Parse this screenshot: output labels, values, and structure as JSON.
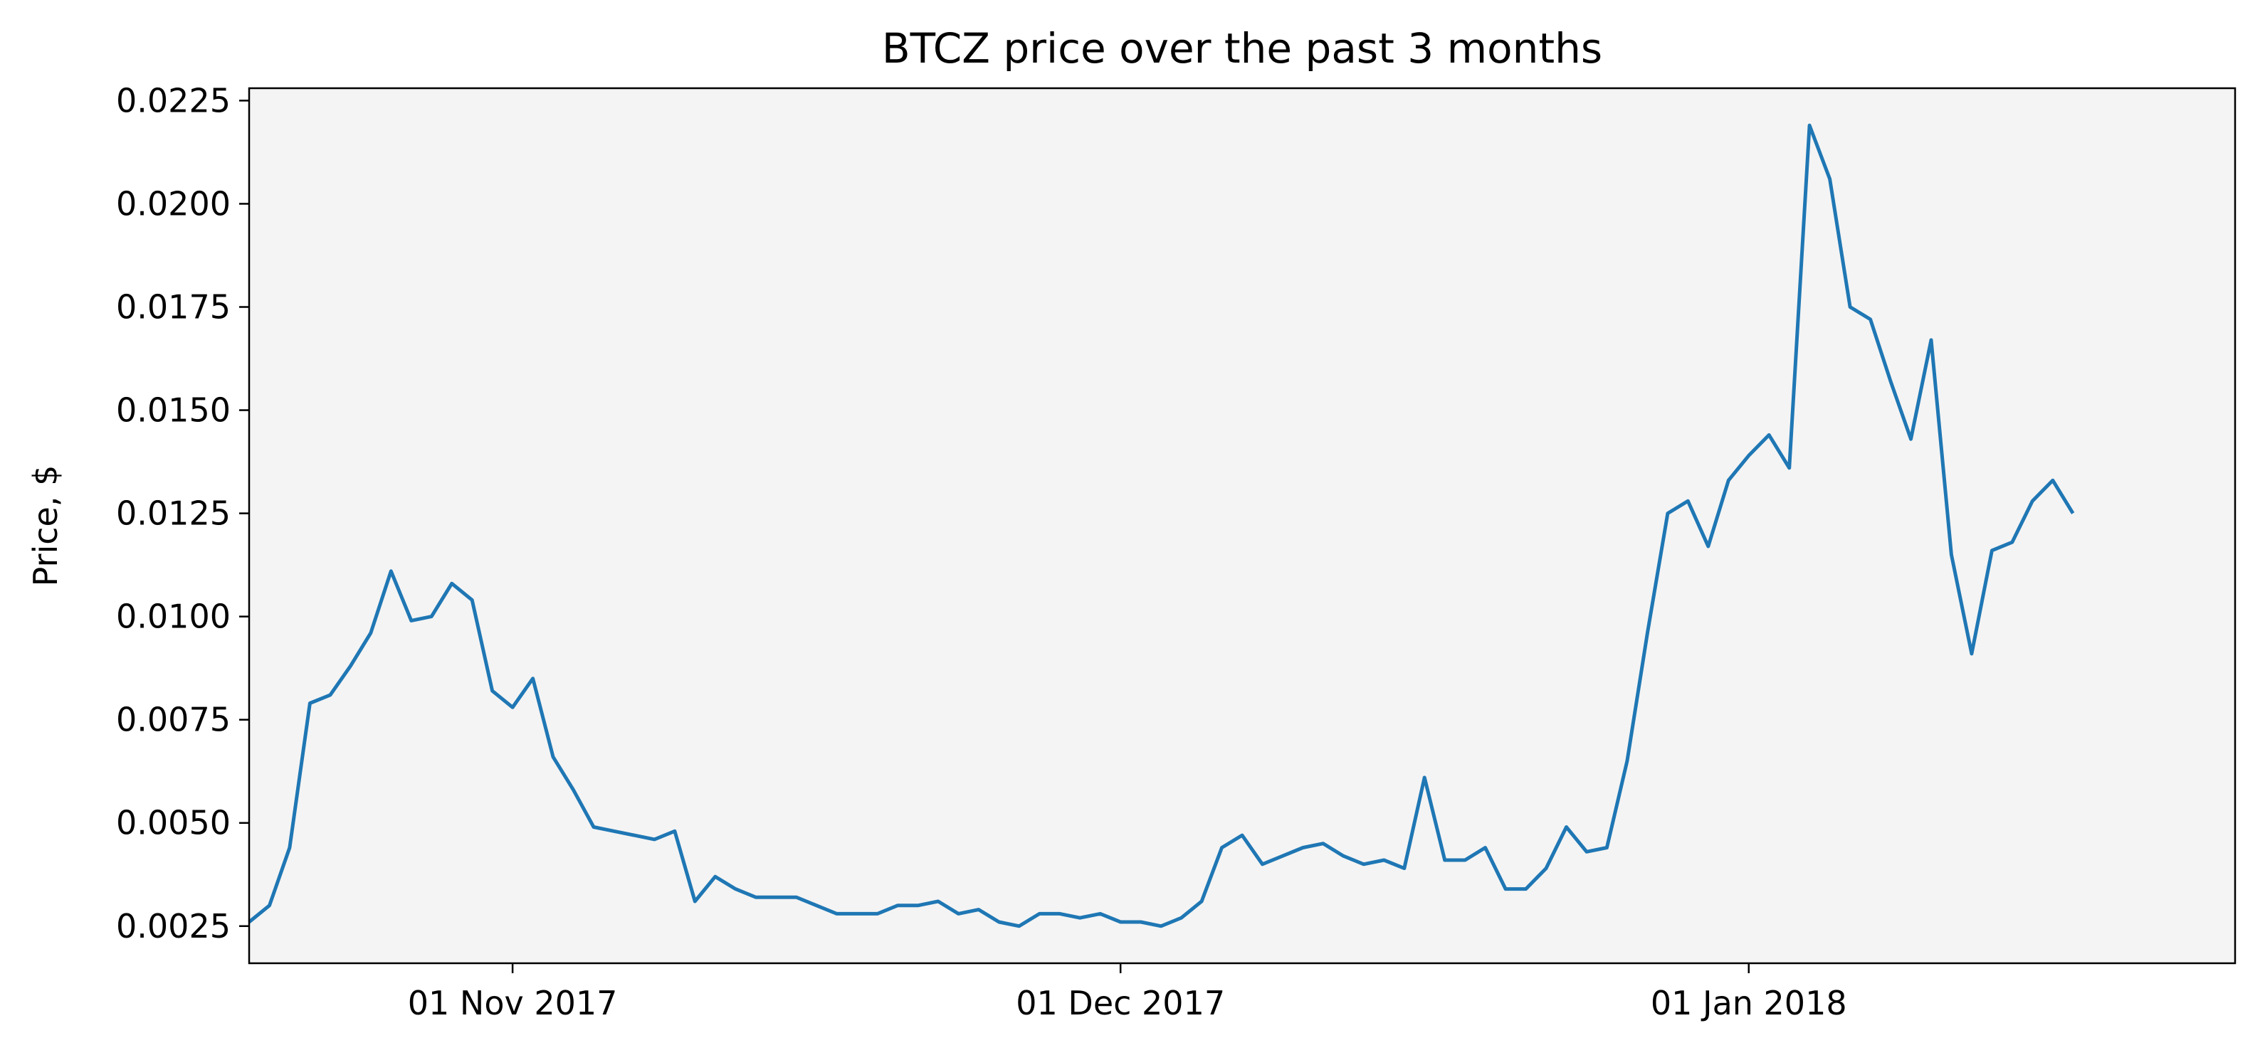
{
  "chart_data": {
    "type": "line",
    "title": "BTCZ price over the past 3 months",
    "xlabel": "",
    "ylabel": "Price, $",
    "x_start": "2017-10-19",
    "x_step_days": 1,
    "x_tick_dates": [
      "2017-11-01",
      "2017-12-01",
      "2018-01-01"
    ],
    "x_tick_labels": [
      "01 Nov 2017",
      "01 Dec 2017",
      "01 Jan 2018"
    ],
    "xlim": [
      "2017-10-19",
      "2018-01-25"
    ],
    "ylim": [
      0.0016,
      0.0228
    ],
    "y_ticks": [
      0.0025,
      0.005,
      0.0075,
      0.01,
      0.0125,
      0.015,
      0.0175,
      0.02,
      0.0225
    ],
    "y_tick_labels": [
      "0.0025",
      "0.0050",
      "0.0075",
      "0.0100",
      "0.0125",
      "0.0150",
      "0.0175",
      "0.0200",
      "0.0225"
    ],
    "grid": false,
    "legend": "none",
    "colors": {
      "line": "#1f77b4",
      "plot_background": "#f4f4f4",
      "axes": "#000000"
    },
    "series": [
      {
        "values": [
          0.0026,
          0.003,
          0.0044,
          0.0079,
          0.0081,
          0.0088,
          0.0096,
          0.0111,
          0.0099,
          0.01,
          0.0108,
          0.0104,
          0.0082,
          0.0078,
          0.0085,
          0.0066,
          0.0058,
          0.0049,
          0.0048,
          0.0047,
          0.0046,
          0.0048,
          0.0031,
          0.0037,
          0.0034,
          0.0032,
          0.0032,
          0.0032,
          0.003,
          0.0028,
          0.0028,
          0.0028,
          0.003,
          0.003,
          0.0031,
          0.0028,
          0.0029,
          0.0026,
          0.0025,
          0.0028,
          0.0028,
          0.0027,
          0.0028,
          0.0026,
          0.0026,
          0.0025,
          0.0027,
          0.0031,
          0.0044,
          0.0047,
          0.004,
          0.0042,
          0.0044,
          0.0045,
          0.0042,
          0.004,
          0.0041,
          0.0039,
          0.0061,
          0.0041,
          0.0041,
          0.0044,
          0.0034,
          0.0034,
          0.0039,
          0.0049,
          0.0043,
          0.0044,
          0.0065,
          0.0096,
          0.0125,
          0.0128,
          0.0117,
          0.0133,
          0.0139,
          0.0144,
          0.0136,
          0.0219,
          0.0206,
          0.0175,
          0.0172,
          0.0157,
          0.0143,
          0.0167,
          0.0115,
          0.0091,
          0.0116,
          0.0118,
          0.0128,
          0.0133,
          0.0125
        ]
      }
    ]
  }
}
